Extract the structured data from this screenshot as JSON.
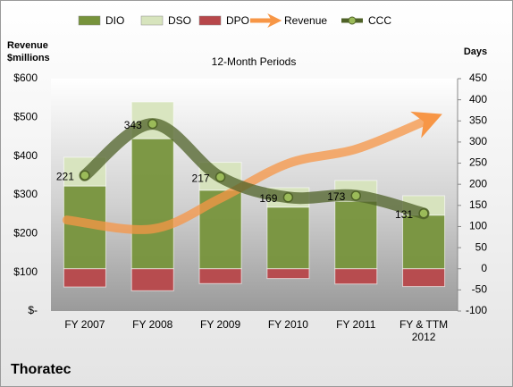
{
  "chart_data": {
    "type": "combo",
    "title": "12-Month Periods",
    "company": "Thoratec",
    "y_label": "Revenue $millions",
    "y2_label": "Days",
    "categories": [
      "FY 2007",
      "FY 2008",
      "FY 2009",
      "FY 2010",
      "FY 2011",
      "FY & TTM 2012"
    ],
    "ylim": [
      0,
      600
    ],
    "yticks": [
      {
        "value": 0,
        "label": "$-"
      },
      {
        "value": 100,
        "label": "$100"
      },
      {
        "value": 200,
        "label": "$200"
      },
      {
        "value": 300,
        "label": "$300"
      },
      {
        "value": 400,
        "label": "$400"
      },
      {
        "value": 500,
        "label": "$500"
      },
      {
        "value": 600,
        "label": "$600"
      }
    ],
    "y2lim": [
      -100,
      450
    ],
    "y2ticks": [
      -100,
      -50,
      0,
      50,
      100,
      150,
      200,
      250,
      300,
      350,
      400,
      450
    ],
    "grid": false,
    "legend": "top",
    "series": [
      {
        "name": "DIO",
        "type": "bar",
        "axis": "y2",
        "color": "#77933c",
        "values": [
          196,
          308,
          186,
          146,
          160,
          127
        ]
      },
      {
        "name": "DSO",
        "type": "bar",
        "axis": "y2",
        "color": "#d7e4bd",
        "values": [
          68,
          87,
          66,
          46,
          49,
          46
        ]
      },
      {
        "name": "DPO",
        "type": "bar",
        "axis": "y2",
        "color": "#b7474a",
        "values": [
          -43,
          -52,
          -35,
          -23,
          -36,
          -42
        ]
      },
      {
        "name": "Revenue",
        "type": "arrow",
        "color": "#f79646",
        "values": [
          235,
          212,
          291,
          381,
          418,
          489
        ]
      },
      {
        "name": "CCC",
        "type": "line",
        "axis": "y2",
        "color": "#4f6228",
        "values": [
          221,
          343,
          217,
          169,
          173,
          131
        ],
        "data_labels": true
      }
    ]
  }
}
